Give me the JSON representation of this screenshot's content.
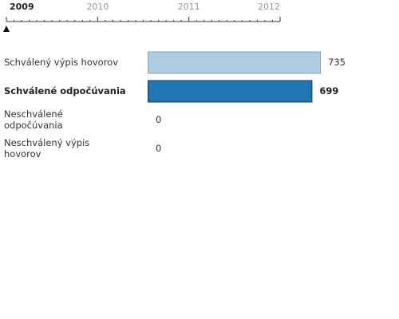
{
  "timeline": {
    "years": [
      "2009",
      "2010",
      "2011",
      "2012"
    ],
    "selected": "2009"
  },
  "chart_data": {
    "type": "bar",
    "orientation": "horizontal",
    "categories": [
      "Schválený výpis hovorov",
      "Schválené odpočúvania",
      "Neschválené odpočúvania",
      "Neschválený výpis hovorov"
    ],
    "category_lines": [
      [
        "Schválený výpis hovorov"
      ],
      [
        "Schválené odpočúvania"
      ],
      [
        "Neschválené",
        "odpočúvania"
      ],
      [
        "Neschválený výpis",
        "hovorov"
      ]
    ],
    "values": [
      735,
      699,
      0,
      0
    ],
    "value_labels": [
      "735",
      "699",
      "0",
      "0"
    ],
    "highlighted_index": 1,
    "colors": {
      "bar": "#aecde3",
      "bar_stroke": "#7fa8c4",
      "highlight": "#2077b4",
      "highlight_stroke": "#1a3a5a",
      "axis": "#333333",
      "year_inactive": "#999999",
      "year_active": "#222222"
    },
    "xlim": [
      0,
      735
    ],
    "title": "",
    "xlabel": "",
    "ylabel": "",
    "grid": false,
    "legend": "none"
  }
}
